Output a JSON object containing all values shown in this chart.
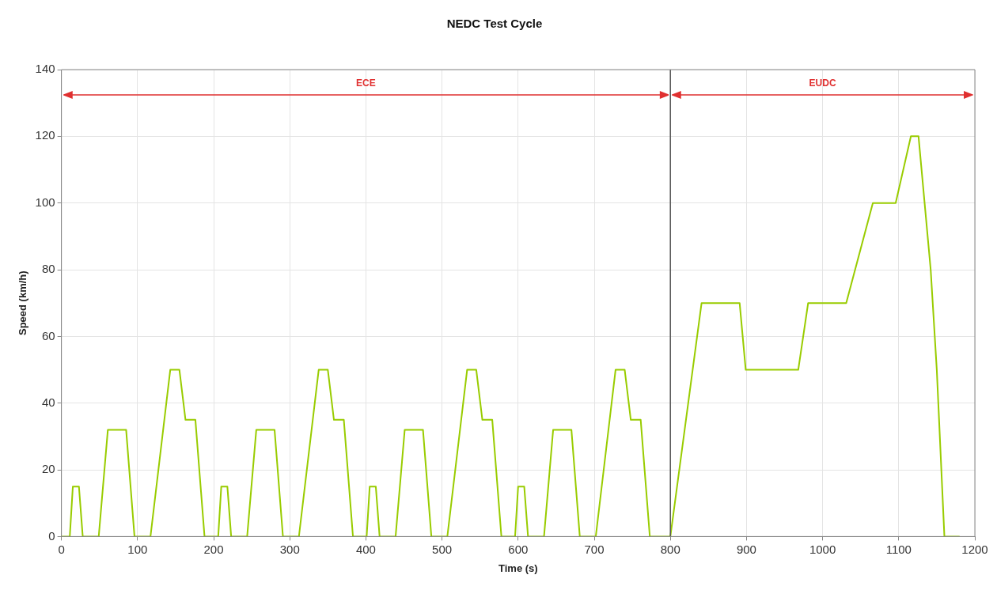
{
  "chart_data": {
    "type": "line",
    "title": "NEDC Test Cycle",
    "xlabel": "Time (s)",
    "ylabel": "Speed (km/h)",
    "xlim": [
      0,
      1200
    ],
    "xticks": [
      0,
      100,
      200,
      300,
      400,
      500,
      600,
      700,
      800,
      900,
      1000,
      1100,
      1200
    ],
    "ylim": [
      0,
      140
    ],
    "yticks": [
      0,
      20,
      40,
      60,
      80,
      100,
      120,
      140
    ],
    "grid": true,
    "legend": false,
    "marker": "none",
    "line_style": "solid",
    "series": [
      {
        "color": "#99cc00",
        "x": [
          0,
          11,
          15,
          23,
          28,
          49,
          61,
          85,
          96,
          117,
          143,
          155,
          163,
          176,
          188,
          206,
          210,
          218,
          223,
          244,
          256,
          280,
          291,
          312,
          338,
          350,
          358,
          371,
          383,
          401,
          405,
          413,
          418,
          439,
          451,
          475,
          486,
          507,
          533,
          545,
          553,
          566,
          578,
          596,
          600,
          608,
          613,
          634,
          646,
          670,
          681,
          702,
          728,
          740,
          748,
          761,
          773,
          800,
          841,
          891,
          899,
          968,
          981,
          1031,
          1066,
          1096,
          1116,
          1126,
          1142,
          1150,
          1160,
          1180
        ],
        "values": [
          0,
          0,
          15,
          15,
          0,
          0,
          32,
          32,
          0,
          0,
          50,
          50,
          35,
          35,
          0,
          0,
          15,
          15,
          0,
          0,
          32,
          32,
          0,
          0,
          50,
          50,
          35,
          35,
          0,
          0,
          15,
          15,
          0,
          0,
          32,
          32,
          0,
          0,
          50,
          50,
          35,
          35,
          0,
          0,
          15,
          15,
          0,
          0,
          32,
          32,
          0,
          0,
          50,
          50,
          35,
          35,
          0,
          0,
          70,
          70,
          50,
          50,
          70,
          70,
          100,
          100,
          120,
          120,
          80,
          50,
          0,
          0
        ]
      }
    ],
    "ref_lines": [
      {
        "axis": "x",
        "value": 800,
        "color": "#555555"
      }
    ],
    "annotations": [
      "ECE",
      "EUDC"
    ]
  }
}
